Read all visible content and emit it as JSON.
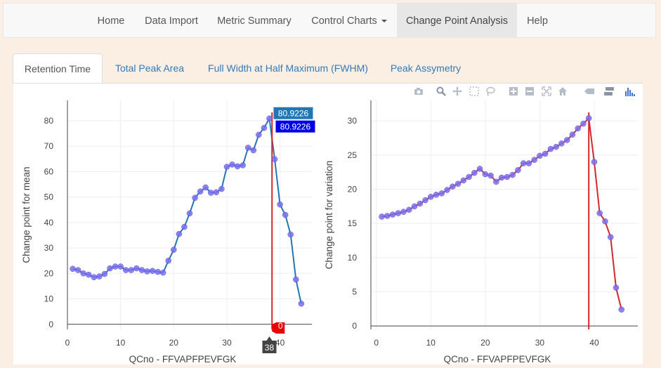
{
  "navbar": {
    "items": [
      {
        "label": "Home"
      },
      {
        "label": "Data Import"
      },
      {
        "label": "Metric Summary"
      },
      {
        "label": "Control Charts"
      },
      {
        "label": "Change Point Analysis"
      },
      {
        "label": "Help"
      }
    ],
    "active_index": 4
  },
  "tabs": [
    {
      "label": "Retention Time"
    },
    {
      "label": "Total Peak Area"
    },
    {
      "label": "Full Width at Half Maximum (FWHM)"
    },
    {
      "label": "Peak Assymetry"
    }
  ],
  "active_tab": 0,
  "modebar_icons": [
    "camera-icon",
    "zoom-icon",
    "pan-icon",
    "box-select-icon",
    "lasso-icon",
    "zoom-in-icon",
    "zoom-out-icon",
    "autoscale-icon",
    "home-icon",
    "spike-lines-icon",
    "compare-hover-icon",
    "plotly-logo-icon"
  ],
  "chart_data": [
    {
      "type": "line",
      "xlabel": "QCno -  FFVAPFPEVFGK",
      "ylabel": "Change point for mean",
      "xlim": [
        0,
        46
      ],
      "ylim": [
        -2,
        88
      ],
      "xticks": [
        0,
        10,
        20,
        30,
        40
      ],
      "yticks": [
        0,
        10,
        20,
        30,
        40,
        50,
        60,
        70,
        80
      ],
      "line_color": "#1f77b4",
      "marker_color": "#7b6ff0",
      "changepoint_x": 38.5,
      "changepoint_color": "#d62728",
      "hover": {
        "x_label": "38",
        "y_labels": [
          "80.9226",
          "80.9226"
        ],
        "baseline_label": "0"
      },
      "x": [
        1,
        2,
        3,
        4,
        5,
        6,
        7,
        8,
        9,
        10,
        11,
        12,
        13,
        14,
        15,
        16,
        17,
        18,
        19,
        20,
        21,
        22,
        23,
        24,
        25,
        26,
        27,
        28,
        29,
        30,
        31,
        32,
        33,
        34,
        35,
        36,
        37,
        38,
        39,
        40,
        41,
        42,
        43,
        44
      ],
      "y": [
        21.8,
        21.3,
        20,
        19.5,
        18.5,
        18.8,
        19.8,
        22,
        22.7,
        22.7,
        21.3,
        21.3,
        22,
        21.3,
        20.8,
        21,
        20.6,
        20.3,
        25,
        29.3,
        35.5,
        38.3,
        43.6,
        49.7,
        52.2,
        53.8,
        51.7,
        51.9,
        53.2,
        61.9,
        62.8,
        62.1,
        62.5,
        69.4,
        68.4,
        74.5,
        77.2,
        80.9,
        64.9,
        47.1,
        43,
        35.3,
        17.6,
        8.1
      ]
    },
    {
      "type": "line",
      "xlabel": "QCno -  FFVAPFPEVFGK",
      "ylabel": "Change point for variation",
      "xlim": [
        -1,
        48
      ],
      "ylim": [
        -0.5,
        33
      ],
      "xticks": [
        0,
        10,
        20,
        30,
        40
      ],
      "yticks": [
        0,
        5,
        10,
        15,
        20,
        25,
        30
      ],
      "line_color": "#d62728",
      "marker_color": "#7b6ff0",
      "changepoint_x": 39,
      "changepoint_color": "#d62728",
      "x": [
        1,
        2,
        3,
        4,
        5,
        6,
        7,
        8,
        9,
        10,
        11,
        12,
        13,
        14,
        15,
        16,
        17,
        18,
        19,
        20,
        21,
        22,
        23,
        24,
        25,
        26,
        27,
        28,
        29,
        30,
        31,
        32,
        33,
        34,
        35,
        36,
        37,
        38,
        39,
        40,
        41,
        42,
        43,
        44,
        45
      ],
      "y": [
        16,
        16.1,
        16.3,
        16.5,
        16.7,
        17,
        17.5,
        17.9,
        18.4,
        18.9,
        19.2,
        19.4,
        19.9,
        20.4,
        20.8,
        21.3,
        21.8,
        22.4,
        23,
        22.2,
        22,
        21.1,
        21.7,
        21.8,
        22.1,
        22.8,
        23.8,
        23.8,
        24.3,
        24.9,
        25.2,
        25.9,
        26.2,
        26.7,
        27.2,
        28,
        28.9,
        29.6,
        30.4,
        24,
        16.5,
        15.3,
        13,
        5.6,
        2.4
      ]
    }
  ]
}
